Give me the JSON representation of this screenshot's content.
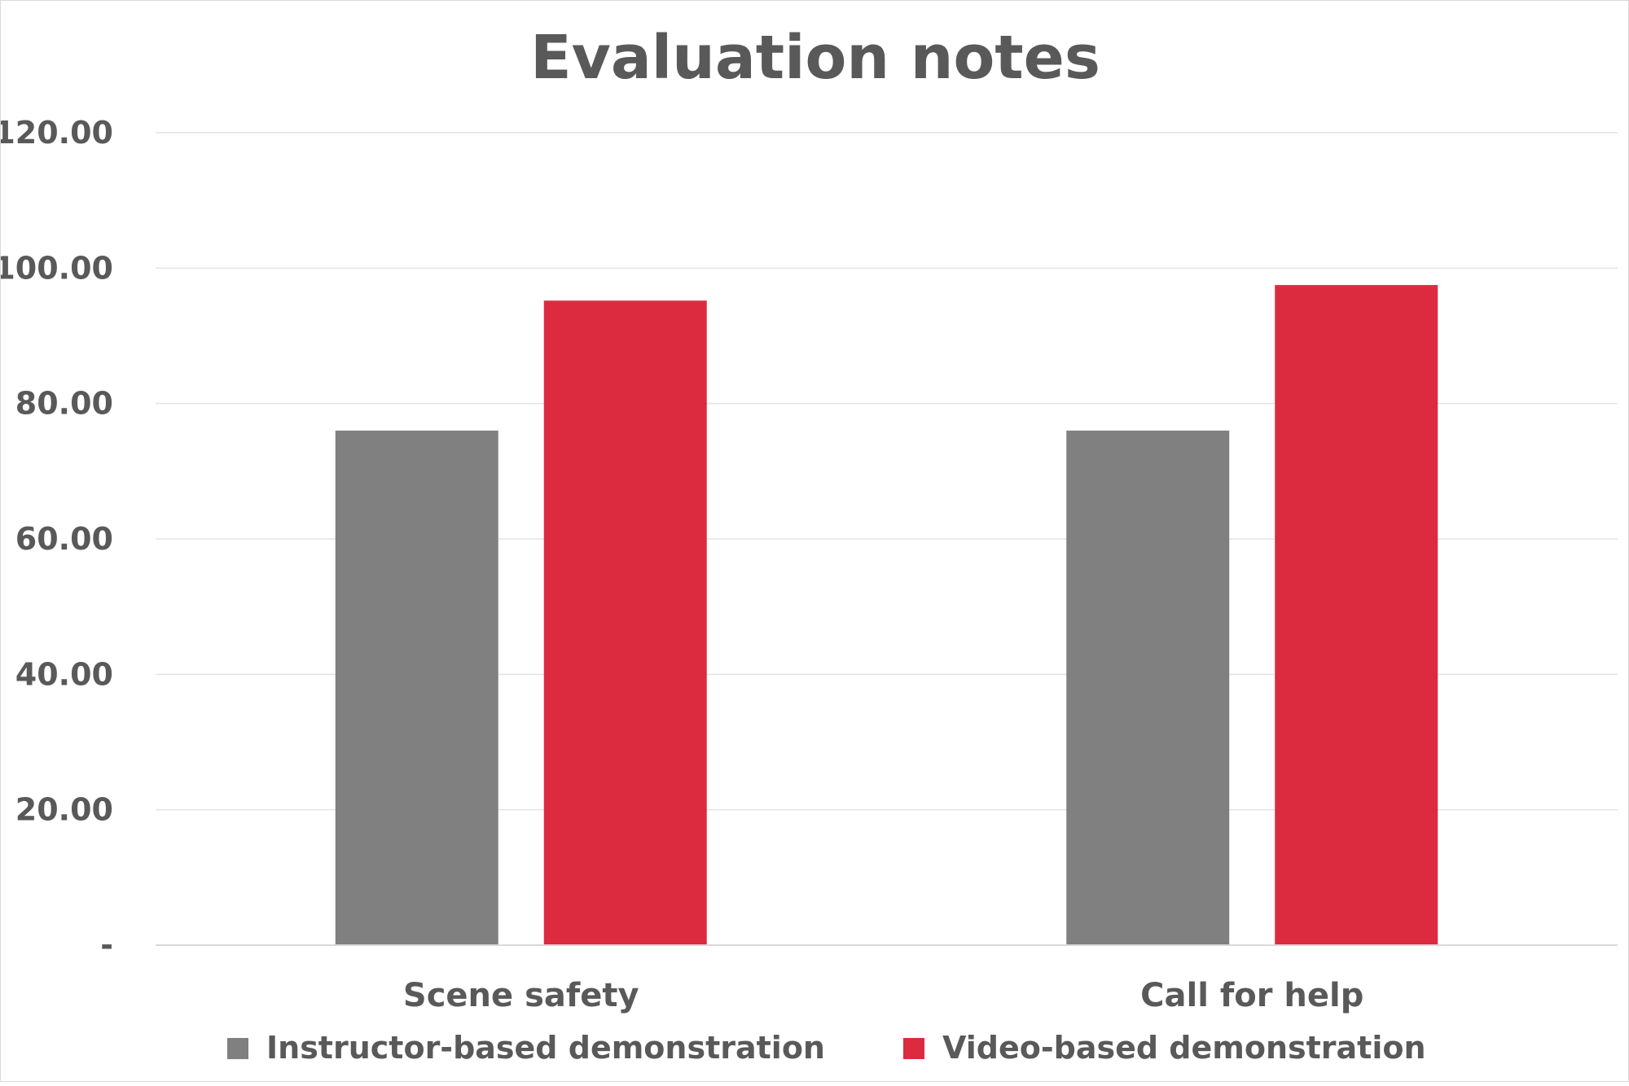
{
  "chart_data": {
    "type": "bar",
    "title": "Evaluation notes",
    "categories": [
      "Scene safety",
      "Call for help"
    ],
    "series": [
      {
        "name": "Instructor-based demonstration",
        "values": [
          76,
          76
        ],
        "color": "#808080"
      },
      {
        "name": "Video-based demonstration",
        "values": [
          95.2,
          97.5
        ],
        "color": "#dc2b3f"
      }
    ],
    "yticks": [
      "-",
      "20.00",
      "40.00",
      "60.00",
      "80.00",
      "100.00",
      "120.00"
    ],
    "ylim": [
      0,
      120
    ],
    "grid": true,
    "legend_position": "bottom"
  }
}
